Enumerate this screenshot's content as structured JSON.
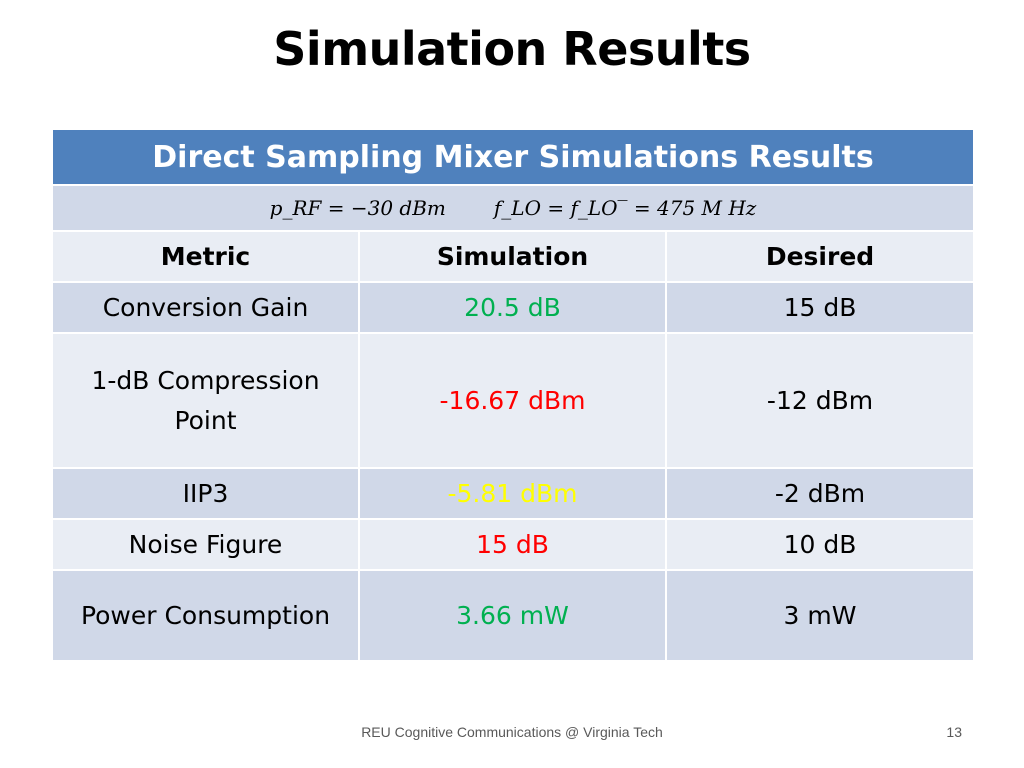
{
  "slide": {
    "title": "Simulation Results"
  },
  "table": {
    "caption": "Direct Sampling Mixer Simulations Results",
    "conditions": {
      "rf_power": "p_RF = −30 dBm",
      "lo_freq": "f_LO = f_LO‾ = 475 M Hz"
    },
    "headers": [
      "Metric",
      "Simulation",
      "Desired"
    ],
    "rows": [
      {
        "metric": "Conversion Gain",
        "simulation": "20.5 dB",
        "desired": "15 dB",
        "simulation_color": "#00b050"
      },
      {
        "metric": "1-dB Compression Point",
        "simulation": "-16.67 dBm",
        "desired": "-12 dBm",
        "simulation_color": "#ff0000"
      },
      {
        "metric": "IIP3",
        "simulation": "-5.81 dBm",
        "desired": "-2 dBm",
        "simulation_color": "#ffff00"
      },
      {
        "metric": "Noise Figure",
        "simulation": "15 dB",
        "desired": "10 dB",
        "simulation_color": "#ff0000"
      },
      {
        "metric": "Power Consumption",
        "simulation": "3.66 mW",
        "desired": "3 mW",
        "simulation_color": "#00b050"
      }
    ]
  },
  "footer": {
    "text": "REU Cognitive Communications @ Virginia Tech",
    "page_number": "13"
  },
  "colors": {
    "header_band": "#4f81bd",
    "row_dark": "#d0d8e8",
    "row_light": "#e9edf4"
  }
}
